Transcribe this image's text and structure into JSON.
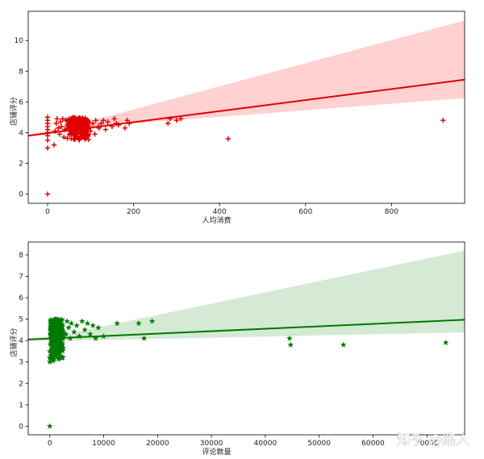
{
  "watermark": "知乎 @路人",
  "chart_data": [
    {
      "type": "scatter",
      "xlabel": "人均消费",
      "ylabel": "店铺评分",
      "xlim": [
        -45,
        970
      ],
      "ylim": [
        -0.6,
        11.9
      ],
      "xticks": [
        0,
        200,
        400,
        600,
        800
      ],
      "yticks": [
        0,
        2,
        4,
        6,
        8,
        10
      ],
      "marker": "+",
      "color": "#e00000",
      "band_color": "#ffb3b3",
      "regression": {
        "x": [
          -45,
          970
        ],
        "y": [
          3.8,
          7.45
        ]
      },
      "band": {
        "upper_end": 11.3,
        "lower_end": 6.25,
        "pivot_x": 75,
        "pivot_y": 4.45
      },
      "cluster": {
        "x_range": [
          45,
          95
        ],
        "y_range": [
          3.5,
          5.0
        ],
        "count": 220
      },
      "points": [
        [
          0,
          0
        ],
        [
          0,
          3.0
        ],
        [
          0,
          3.5
        ],
        [
          0,
          3.8
        ],
        [
          0,
          4.0
        ],
        [
          0,
          4.2
        ],
        [
          0,
          4.4
        ],
        [
          0,
          4.6
        ],
        [
          0,
          4.8
        ],
        [
          0,
          5.0
        ],
        [
          15,
          3.2
        ],
        [
          18,
          4.1
        ],
        [
          20,
          4.6
        ],
        [
          22,
          4.9
        ],
        [
          25,
          4.3
        ],
        [
          28,
          3.9
        ],
        [
          30,
          4.7
        ],
        [
          32,
          4.4
        ],
        [
          35,
          4.9
        ],
        [
          38,
          3.7
        ],
        [
          40,
          4.2
        ],
        [
          42,
          4.8
        ],
        [
          100,
          4.1
        ],
        [
          105,
          4.6
        ],
        [
          110,
          3.9
        ],
        [
          112,
          4.8
        ],
        [
          118,
          4.4
        ],
        [
          120,
          4.3
        ],
        [
          125,
          4.6
        ],
        [
          130,
          4.8
        ],
        [
          135,
          4.2
        ],
        [
          140,
          4.7
        ],
        [
          150,
          4.4
        ],
        [
          155,
          4.9
        ],
        [
          160,
          4.6
        ],
        [
          165,
          4.5
        ],
        [
          180,
          4.3
        ],
        [
          185,
          4.8
        ],
        [
          190,
          4.6
        ],
        [
          280,
          4.6
        ],
        [
          285,
          4.9
        ],
        [
          300,
          4.8
        ],
        [
          310,
          4.9
        ],
        [
          420,
          3.6
        ],
        [
          920,
          4.8
        ]
      ]
    },
    {
      "type": "scatter",
      "xlabel": "评论数量",
      "ylabel": "店铺评分",
      "xlim": [
        -4000,
        77000
      ],
      "ylim": [
        -0.4,
        8.6
      ],
      "xticks": [
        0,
        10000,
        20000,
        30000,
        40000,
        50000,
        60000,
        70000
      ],
      "yticks": [
        0,
        1,
        2,
        3,
        4,
        5,
        6,
        7,
        8
      ],
      "marker": "*",
      "color": "#007a00",
      "band_color": "#b9dcb9",
      "regression": {
        "x": [
          -4000,
          77000
        ],
        "y": [
          4.05,
          4.97
        ]
      },
      "band": {
        "upper_end": 8.2,
        "lower_end": 4.38,
        "pivot_x": 1500,
        "pivot_y": 4.1
      },
      "cluster": {
        "x_range": [
          0,
          2500
        ],
        "y_range": [
          3.0,
          5.0
        ],
        "count": 240
      },
      "points": [
        [
          0,
          0
        ],
        [
          0,
          3.0
        ],
        [
          0,
          3.2
        ],
        [
          0,
          3.5
        ],
        [
          3000,
          4.3
        ],
        [
          3200,
          4.9
        ],
        [
          3500,
          4.6
        ],
        [
          3800,
          4.1
        ],
        [
          4000,
          4.8
        ],
        [
          4500,
          4.4
        ],
        [
          5000,
          4.7
        ],
        [
          5500,
          4.2
        ],
        [
          6000,
          4.9
        ],
        [
          6500,
          4.5
        ],
        [
          7000,
          4.8
        ],
        [
          7500,
          4.3
        ],
        [
          8000,
          4.7
        ],
        [
          8500,
          4.1
        ],
        [
          9000,
          4.6
        ],
        [
          10000,
          4.2
        ],
        [
          12500,
          4.8
        ],
        [
          16500,
          4.8
        ],
        [
          17500,
          4.1
        ],
        [
          19000,
          4.9
        ],
        [
          44500,
          4.1
        ],
        [
          44700,
          3.8
        ],
        [
          54500,
          3.8
        ],
        [
          73500,
          3.9
        ]
      ]
    }
  ]
}
